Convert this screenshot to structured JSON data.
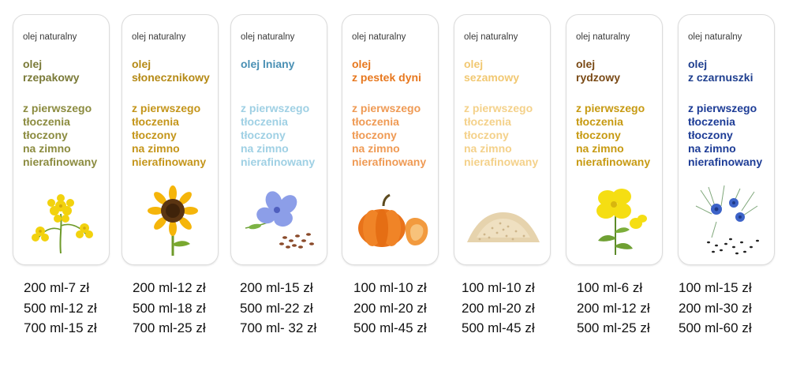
{
  "cards": [
    {
      "kicker": "olej naturalny",
      "name_line1": "olej",
      "name_line2": "rzepakowy",
      "desc": [
        "z pierwszego",
        "tłoczenia",
        "tłoczony",
        "na zimno",
        "nierafinowany"
      ],
      "name_color": "#7a7a38",
      "desc_color": "#8b8b3f",
      "image": "rapeseed-flower-illustration",
      "prices": [
        "200 ml-7 zł",
        "500 ml-12 zł",
        "700 ml-15 zł"
      ]
    },
    {
      "kicker": "olej naturalny",
      "name_line1": "olej",
      "name_line2": "słonecznikowy",
      "desc": [
        "z pierwszego",
        "tłoczenia",
        "tłoczony",
        "na zimno",
        "nierafinowany"
      ],
      "name_color": "#b58a16",
      "desc_color": "#c4951a",
      "image": "sunflower-illustration",
      "prices": [
        "200 ml-12 zł",
        "500 ml-18 zł",
        "700 ml-25 zł"
      ]
    },
    {
      "kicker": "olej naturalny",
      "name_line1": "olej lniany",
      "name_line2": "",
      "desc": [
        "z pierwszego",
        "tłoczenia",
        "tłoczony",
        "na zimno",
        "nierafinowany"
      ],
      "name_color": "#4a90b4",
      "desc_color": "#9fd0e4",
      "image": "flax-flower-illustration",
      "prices": [
        "200 ml-15 zł",
        "500 ml-22 zł",
        "700 ml- 32 zł"
      ]
    },
    {
      "kicker": "olej naturalny",
      "name_line1": "olej",
      "name_line2": "z pestek dyni",
      "desc": [
        "z pierwszego",
        "tłoczenia",
        "tłoczony",
        "na zimno",
        "nierafinowany"
      ],
      "name_color": "#e7781f",
      "desc_color": "#ef9a54",
      "image": "pumpkin-illustration",
      "prices": [
        "100 ml-10 zł",
        "200 ml-20 zł",
        "500 ml-45 zł"
      ]
    },
    {
      "kicker": "olej naturalny",
      "name_line1": "olej",
      "name_line2": "sezamowy",
      "desc": [
        "z pierwszego",
        "tłoczenia",
        "tłoczony",
        "na zimno",
        "nierafinowany"
      ],
      "name_color": "#f1c872",
      "desc_color": "#f4d18a",
      "image": "sesame-seeds-illustration",
      "prices": [
        "100 ml-10 zł",
        "200 ml-20 zł",
        "500 ml-45 zł"
      ]
    },
    {
      "kicker": "olej naturalny",
      "name_line1": "olej",
      "name_line2": "rydzowy",
      "desc": [
        "z pierwszego",
        "tłoczenia",
        "tłoczony",
        "na zimno",
        "nierafinowany"
      ],
      "name_color": "#7a4a16",
      "desc_color": "#c79a12",
      "image": "camelina-flower-illustration",
      "prices": [
        "100 ml-6 zł",
        "200 ml-12 zł",
        "500 ml-25 zł"
      ]
    },
    {
      "kicker": "olej naturalny",
      "name_line1": "olej",
      "name_line2": "z czarnuszki",
      "desc": [
        "z pierwszego",
        "tłoczenia",
        "tłoczony",
        "na zimno",
        "nierafinowany"
      ],
      "name_color": "#1f3f8f",
      "desc_color": "#1d3c96",
      "image": "nigella-flower-illustration",
      "prices": [
        "100 ml-15 zł",
        "200 ml-30 zł",
        "500 ml-60 zł"
      ]
    }
  ]
}
